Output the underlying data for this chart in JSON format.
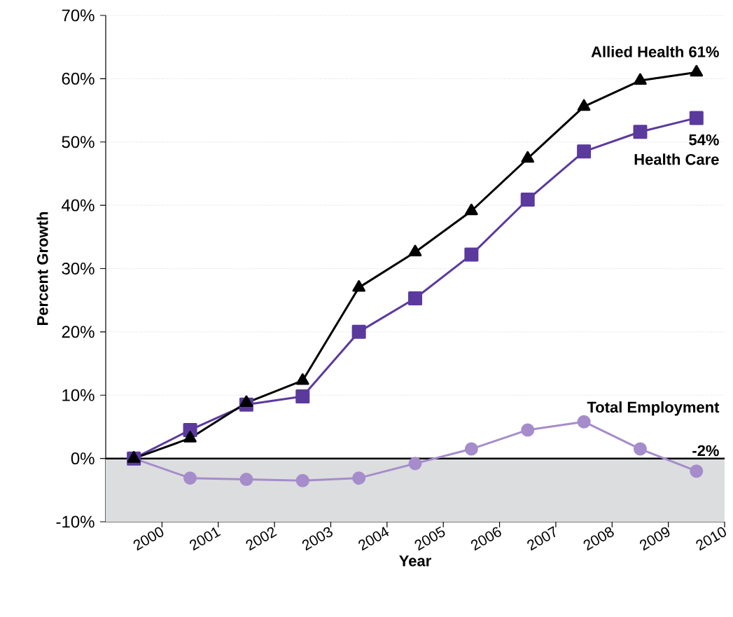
{
  "chart_data": {
    "type": "line",
    "xlabel": "Year",
    "ylabel": "Percent Growth",
    "x": [
      1999.5,
      2000.5,
      2001.5,
      2002.5,
      2003.5,
      2004.5,
      2005.5,
      2006.5,
      2007.5,
      2008.5,
      2009.5
    ],
    "series": [
      {
        "name": "Allied Health",
        "color": "#000000",
        "marker": "triangle",
        "values": [
          0,
          3.2,
          8.8,
          12.3,
          27,
          32.6,
          39.1,
          47.4,
          55.6,
          59.7,
          61
        ],
        "value_labels": [
          null,
          null,
          null,
          null,
          null,
          null,
          null,
          null,
          null,
          null,
          "61%"
        ]
      },
      {
        "name": "Health Care",
        "color": "#5b3a9e",
        "marker": "square",
        "values": [
          0,
          4.5,
          8.5,
          9.8,
          20,
          25.3,
          32.2,
          40.9,
          48.5,
          51.6,
          53.8
        ],
        "value_labels": [
          null,
          null,
          null,
          null,
          null,
          null,
          null,
          null,
          null,
          null,
          "54%"
        ]
      },
      {
        "name": "Total Employment",
        "color": "#a58ccb",
        "marker": "circle",
        "values": [
          0,
          -3.1,
          -3.3,
          -3.5,
          -3.1,
          -0.8,
          1.5,
          4.5,
          5.8,
          1.5,
          -2
        ],
        "value_labels": [
          null,
          null,
          null,
          null,
          null,
          null,
          null,
          null,
          null,
          null,
          "-2%"
        ]
      }
    ],
    "xlim": [
      1999,
      2010
    ],
    "ylim": [
      -10,
      70
    ],
    "xticks": [
      2000,
      2001,
      2002,
      2003,
      2004,
      2005,
      2006,
      2007,
      2008,
      2009,
      2010
    ],
    "yticks": [
      {
        "value": -10,
        "label": "-10%"
      },
      {
        "value": 0,
        "label": "0%"
      },
      {
        "value": 10,
        "label": "10%"
      },
      {
        "value": 20,
        "label": "20%"
      },
      {
        "value": 30,
        "label": "30%"
      },
      {
        "value": 40,
        "label": "40%"
      },
      {
        "value": 50,
        "label": "50%"
      },
      {
        "value": 60,
        "label": "60%"
      },
      {
        "value": 70,
        "label": "70%"
      }
    ],
    "grid": "y",
    "line_style": "solid",
    "legend": false,
    "ref_lines": [
      {
        "axis": "y",
        "value": 0,
        "color": "#000000"
      }
    ],
    "bands": [
      {
        "axis": "y",
        "from": -10,
        "to": 0,
        "color": "#dcdddf"
      }
    ]
  }
}
